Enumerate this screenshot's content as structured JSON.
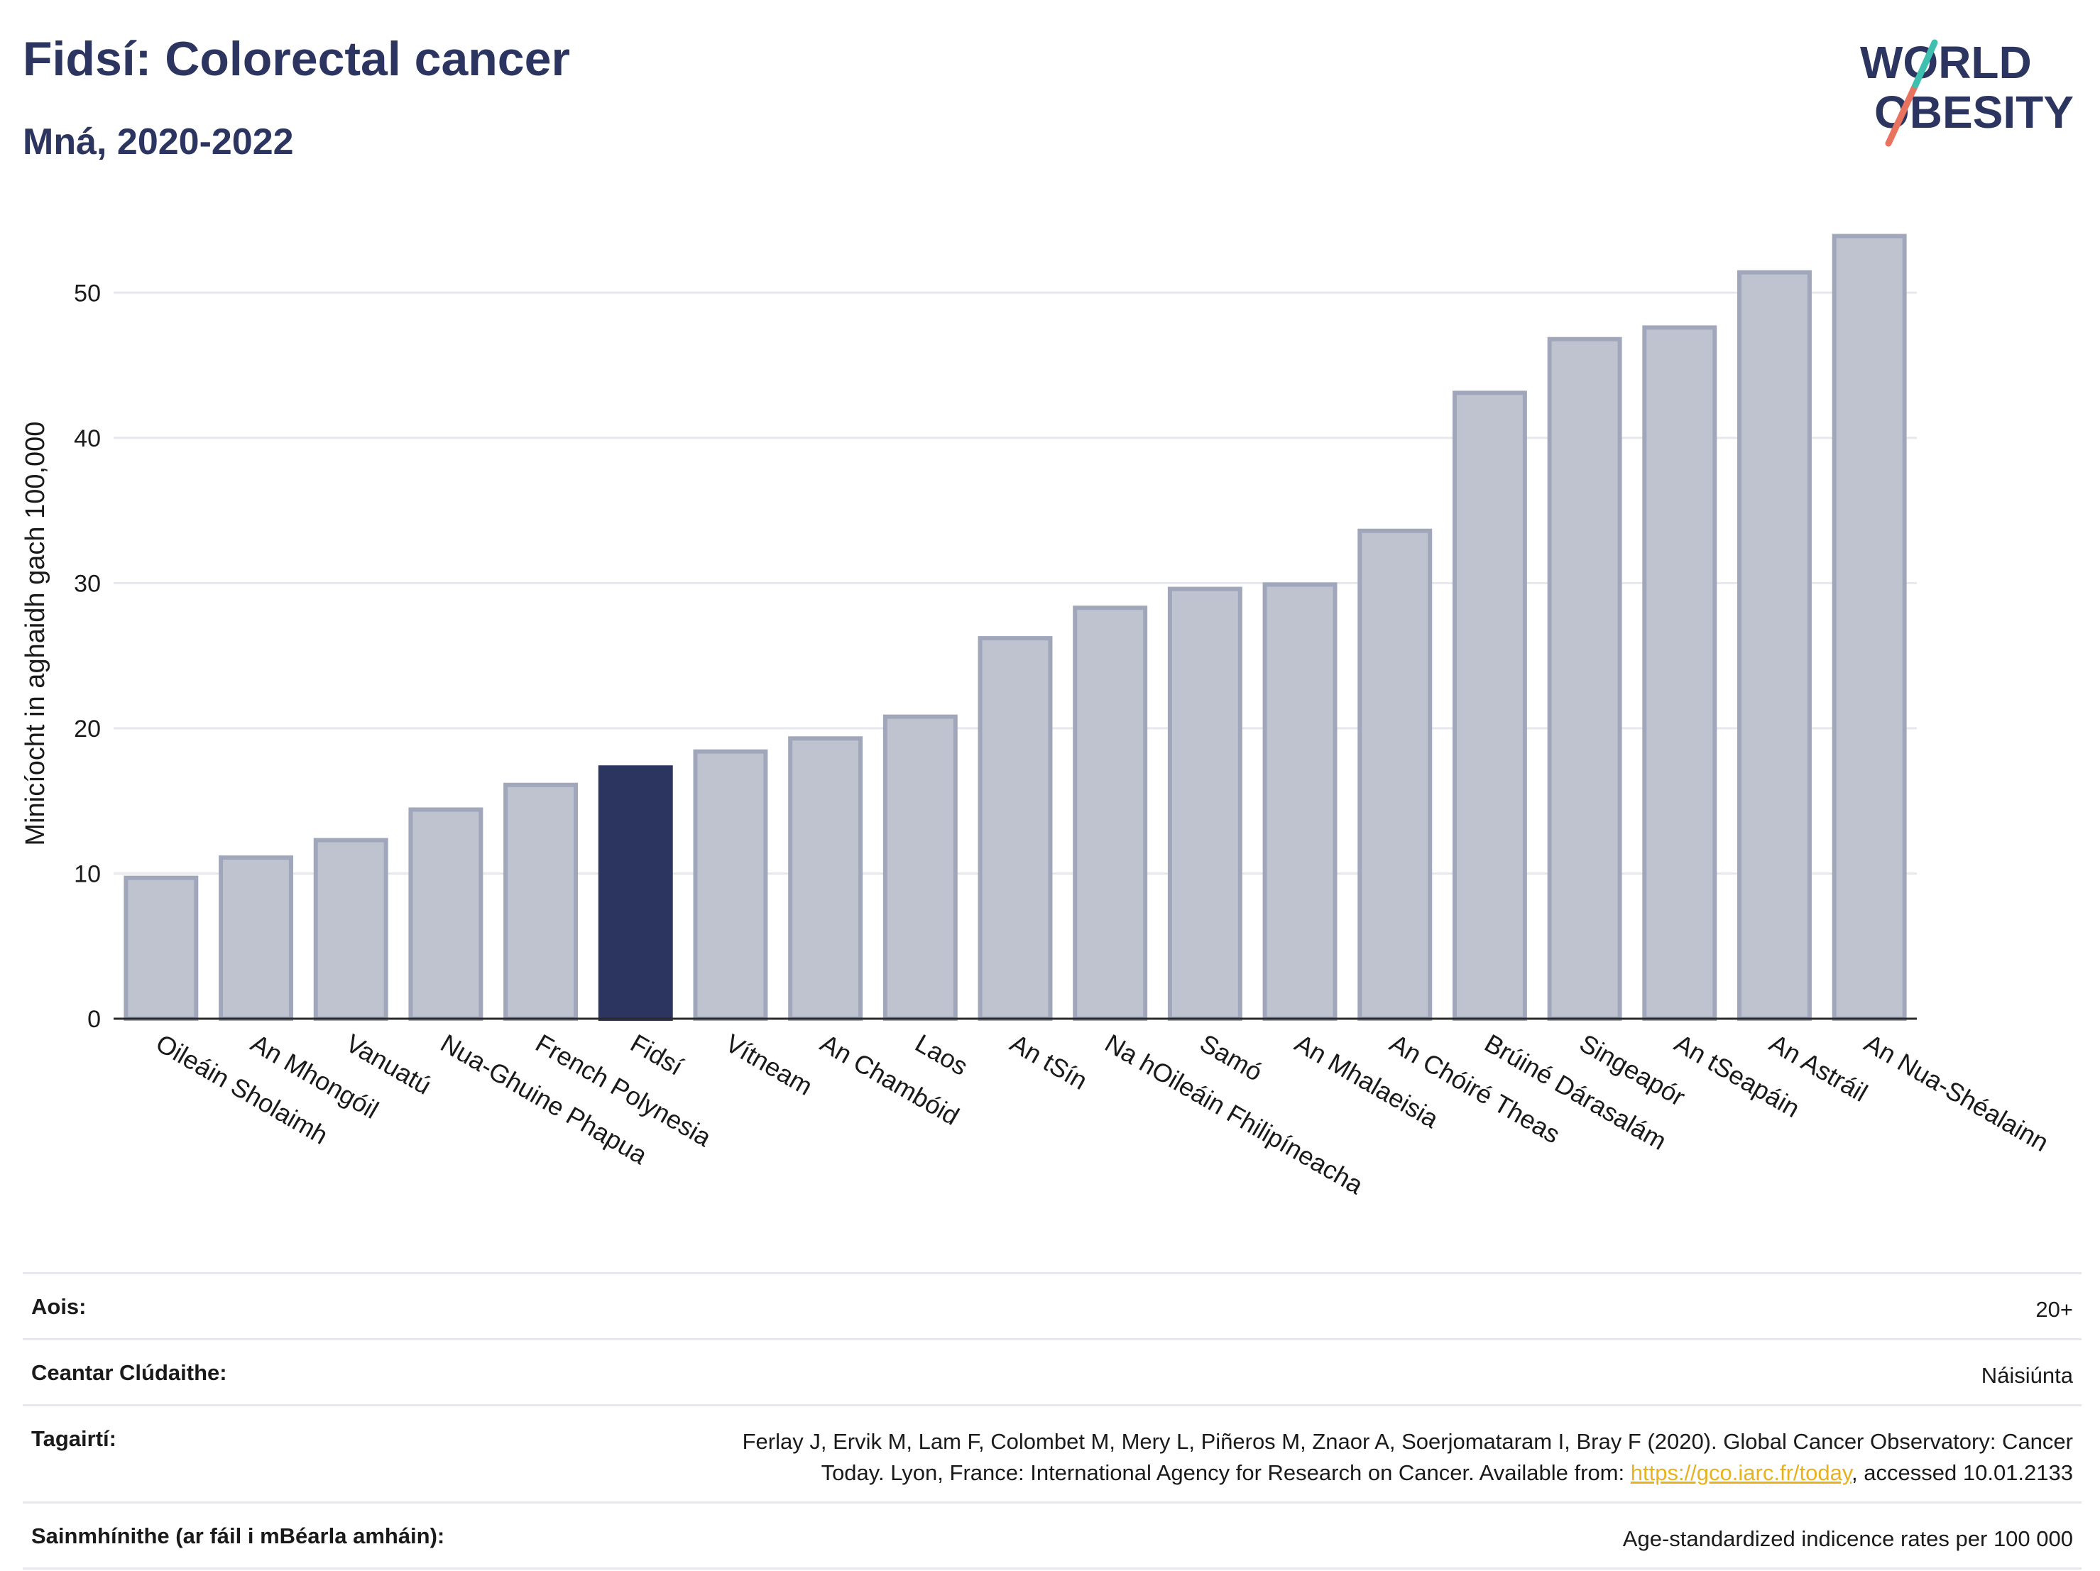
{
  "header": {
    "title": "Fidsí: Colorectal cancer",
    "subtitle": "Mná, 2020-2022"
  },
  "logo": {
    "line1": "WORLD",
    "line2": "OBESITY"
  },
  "colors": {
    "highlight": "#2b3560",
    "bar": "#bfc3d0",
    "bar_border": "#a0a7bb",
    "grid": "#e6e8ee"
  },
  "chart_data": {
    "type": "bar",
    "ylabel": "Minicíocht in aghaidh gach 100,000",
    "ylim": [
      0,
      55
    ],
    "yticks": [
      0,
      10,
      20,
      30,
      40,
      50
    ],
    "grid": true,
    "highlight": "Fidsí",
    "categories": [
      "Oileáin Sholaimh",
      "An Mhongóil",
      "Vanuatú",
      "Nua-Ghuine Phapua",
      "French Polynesia",
      "Fidsí",
      "Vítneam",
      "An Chambóid",
      "Laos",
      "An tSín",
      "Na hOileáin Fhilipíneacha",
      "Samó",
      "An Mhalaeisia",
      "An Chóiré Theas",
      "Brúiné Dárasalám",
      "Singeapór",
      "An tSeapáin",
      "An Astráil",
      "An Nua-Shéalainn"
    ],
    "values": [
      9.7,
      11.1,
      12.3,
      14.4,
      16.1,
      17.3,
      18.4,
      19.3,
      20.8,
      26.2,
      28.3,
      29.6,
      29.9,
      33.6,
      43.1,
      46.8,
      47.6,
      51.4,
      53.9
    ]
  },
  "info": {
    "age_label": "Aois:",
    "age_value": "20+",
    "coverage_label": "Ceantar Clúdaithe:",
    "coverage_value": "Náisiúnta",
    "refs_label": "Tagairtí:",
    "refs_line1": "Ferlay J, Ervik M, Lam F, Colombet M, Mery L, Piñeros M, Znaor A, Soerjomataram I, Bray F (2020). Global Cancer Observatory: Cancer",
    "refs_line2_pre": "Today. Lyon, France: International Agency for Research on Cancer. Available from: ",
    "refs_link": "https://gco.iarc.fr/today",
    "refs_line2_post": ", accessed 10.01.2133",
    "defs_label": "Sainmhínithe (ar fáil i mBéarla amháin):",
    "defs_value": "Age-standardized indicence rates per 100 000"
  }
}
